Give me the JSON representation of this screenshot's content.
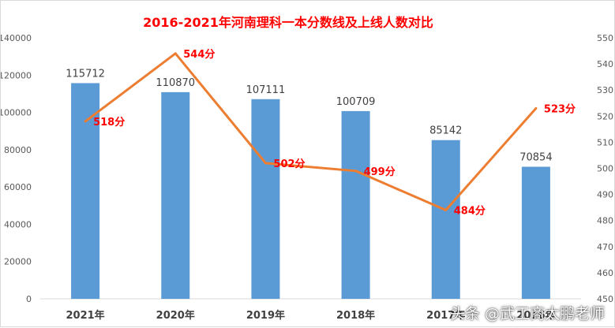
{
  "chart_data": {
    "type": "bar+line",
    "title": "2016-2021年河南理科一本分数线及上线人数对比",
    "categories": [
      "2021年",
      "2020年",
      "2019年",
      "2018年",
      "2017年",
      "2016年"
    ],
    "series": [
      {
        "type": "bar",
        "axis": "left",
        "values": [
          115712,
          110870,
          107111,
          100709,
          85142,
          70854
        ],
        "color": "#5b9bd5"
      },
      {
        "type": "line",
        "axis": "right",
        "values": [
          518,
          544,
          502,
          499,
          484,
          523
        ],
        "labels": [
          "518分",
          "544分",
          "502分",
          "499分",
          "484分",
          "523分"
        ],
        "color": "#ed7d31"
      }
    ],
    "y_left": {
      "min": 0,
      "max": 140000,
      "ticks": [
        "0",
        "20000",
        "40000",
        "60000",
        "80000",
        "100000",
        "120000",
        "140000"
      ]
    },
    "y_right": {
      "min": 450,
      "max": 550,
      "ticks": [
        "450",
        "460",
        "470",
        "480",
        "490",
        "500",
        "510",
        "520",
        "530",
        "540",
        "550"
      ]
    },
    "bar_labels": [
      "115712",
      "110870",
      "107111",
      "100709",
      "85142",
      "70854"
    ],
    "label_color": "#ff0000",
    "grid": false,
    "legend": "none"
  },
  "watermark": "头条 @武工商太鹏老师"
}
